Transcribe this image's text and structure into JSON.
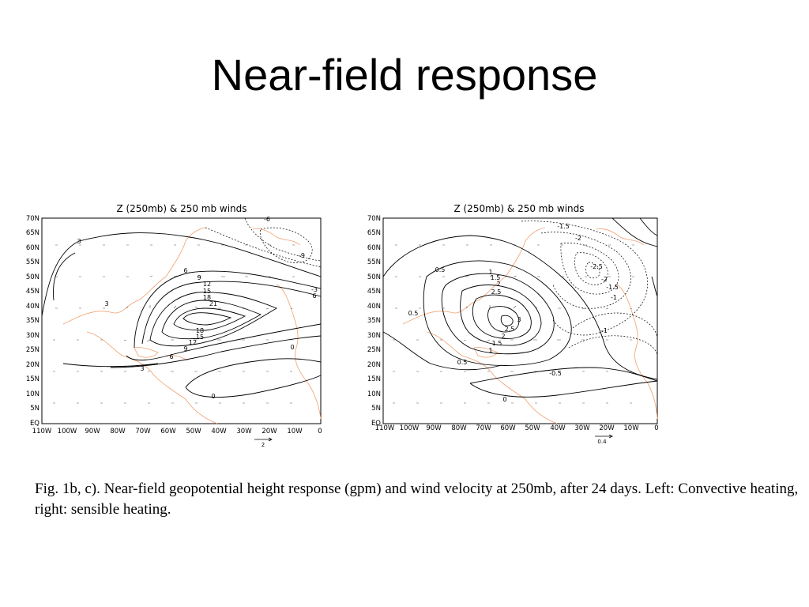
{
  "slide": {
    "title": "Near-field response",
    "caption": "Fig. 1b, c). Near-field geopotential height response (gpm) and wind velocity at 250mb, after 24 days. Left: Convective heating, right: sensible heating."
  },
  "panels": [
    {
      "title": "Z (250mb)  & 250 mb winds",
      "lat_labels": [
        "70N",
        "65N",
        "60N",
        "55N",
        "50N",
        "45N",
        "40N",
        "35N",
        "30N",
        "25N",
        "20N",
        "15N",
        "10N",
        "5N",
        "EQ"
      ],
      "lon_labels": [
        "110W",
        "100W",
        "90W",
        "80W",
        "70W",
        "60W",
        "50W",
        "40W",
        "30W",
        "20W",
        "10W",
        "0"
      ],
      "contour_labels": [
        "3",
        "3",
        "6",
        "9",
        "12",
        "15",
        "18",
        "21",
        "18",
        "15",
        "12",
        "9",
        "6",
        "3",
        "-6",
        "-9",
        "-3",
        "6",
        "0",
        "0"
      ],
      "vector_scale_label": "2"
    },
    {
      "title": "Z (250mb)  & 250 mb winds",
      "lat_labels": [
        "70N",
        "65N",
        "60N",
        "55N",
        "50N",
        "45N",
        "40N",
        "35N",
        "30N",
        "25N",
        "20N",
        "15N",
        "10N",
        "5N",
        "EQ"
      ],
      "lon_labels": [
        "110W",
        "100W",
        "90W",
        "80W",
        "70W",
        "60W",
        "50W",
        "40W",
        "30W",
        "20W",
        "10W",
        "0"
      ],
      "contour_labels": [
        "-1.5",
        "-2",
        "-2.5",
        "-2",
        "-1.5",
        "-1",
        "0.5",
        "1",
        "1.5",
        "2",
        "2.5",
        "3",
        "2.5",
        "2",
        "1.5",
        "1",
        "0.5",
        "0.5",
        "0",
        "-1",
        "-0.5"
      ],
      "vector_scale_label": "0.4"
    }
  ],
  "colors": {
    "contour": "#000000",
    "coastline": "#f0a070",
    "frame": "#000000"
  }
}
